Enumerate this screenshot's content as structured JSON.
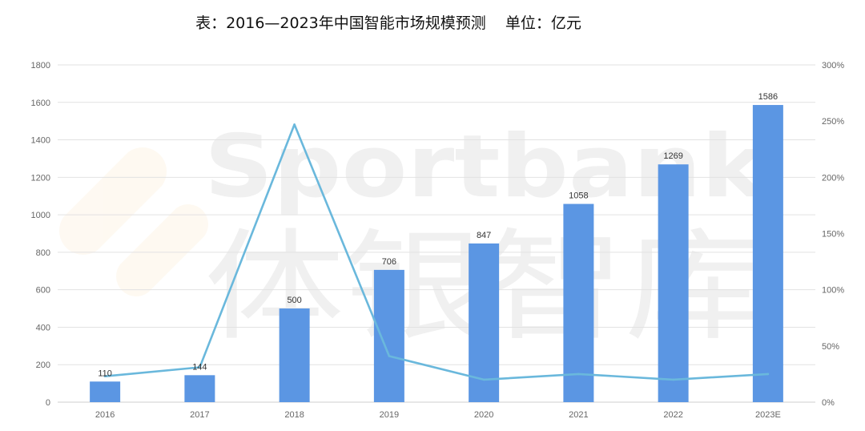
{
  "chart_data": {
    "type": "bar",
    "title": "表：2016—2023年中国智能市场规模预测    单位：亿元",
    "categories": [
      "2016",
      "2017",
      "2018",
      "2019",
      "2020",
      "2021",
      "2022",
      "2023E"
    ],
    "series": [
      {
        "type": "bar",
        "axis": "left",
        "values": [
          110,
          144,
          500,
          706,
          847,
          1058,
          1269,
          1586
        ],
        "data_labels": [
          "110",
          "144",
          "500",
          "706",
          "847",
          "1058",
          "1269",
          "1586"
        ]
      },
      {
        "type": "line",
        "axis": "right",
        "values": [
          23,
          31,
          247,
          41,
          20,
          25,
          20,
          25
        ]
      }
    ],
    "ylim": [
      0,
      1800
    ],
    "y_ticks": [
      "0",
      "200",
      "400",
      "600",
      "800",
      "1000",
      "1200",
      "1400",
      "1600",
      "1800"
    ],
    "y2lim": [
      0,
      300
    ],
    "y2_ticks": [
      "0%",
      "50%",
      "100%",
      "150%",
      "200%",
      "250%",
      "300%"
    ],
    "grid": true,
    "legend": "none",
    "colors": {
      "bar": "#5b96e3",
      "line": "#6ab8dc",
      "grid": "#e2e2e2"
    }
  },
  "watermark": {
    "latin": "Sportbank",
    "cjk": "体银智库"
  }
}
